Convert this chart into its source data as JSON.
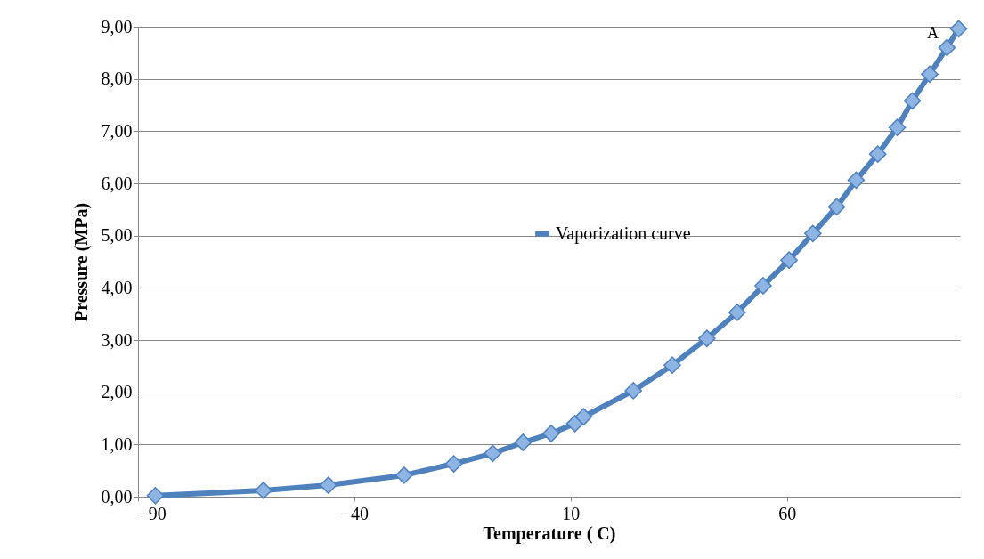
{
  "chart_data": {
    "type": "line",
    "xlabel": "Temperature ( C)",
    "ylabel": "Pressure (MPa)",
    "xlim": [
      -90,
      100
    ],
    "xticks": [
      -90,
      -40,
      10,
      60
    ],
    "ylim": [
      0,
      9
    ],
    "yticks": [
      {
        "value": 0,
        "label": "0,00"
      },
      {
        "value": 1,
        "label": "1,00"
      },
      {
        "value": 2,
        "label": "2,00"
      },
      {
        "value": 3,
        "label": "3,00"
      },
      {
        "value": 4,
        "label": "4,00"
      },
      {
        "value": 5,
        "label": "5,00"
      },
      {
        "value": 6,
        "label": "6,00"
      },
      {
        "value": 7,
        "label": "7,00"
      },
      {
        "value": 8,
        "label": "8,00"
      },
      {
        "value": 9,
        "label": "9,00"
      }
    ],
    "grid": "y",
    "legend": "right",
    "marker": "diamond",
    "line_style": "solid",
    "annotations": [
      "A"
    ],
    "series": [
      {
        "name": "Vaporization curve",
        "color": "#4f81bd",
        "x": [
          -86,
          -61,
          -46,
          -28.5,
          -17,
          -8,
          -1,
          5.5,
          11,
          13,
          24.5,
          33.5,
          41.5,
          48.5,
          54.5,
          60.5,
          66,
          71.5,
          76,
          81,
          85.5,
          89,
          93,
          97,
          99.7
        ],
        "values": [
          0.02,
          0.12,
          0.22,
          0.41,
          0.63,
          0.83,
          1.04,
          1.21,
          1.4,
          1.53,
          2.03,
          2.52,
          3.03,
          3.53,
          4.04,
          4.53,
          5.04,
          5.55,
          6.06,
          6.56,
          7.07,
          7.58,
          8.09,
          8.6,
          8.96
        ]
      }
    ]
  }
}
